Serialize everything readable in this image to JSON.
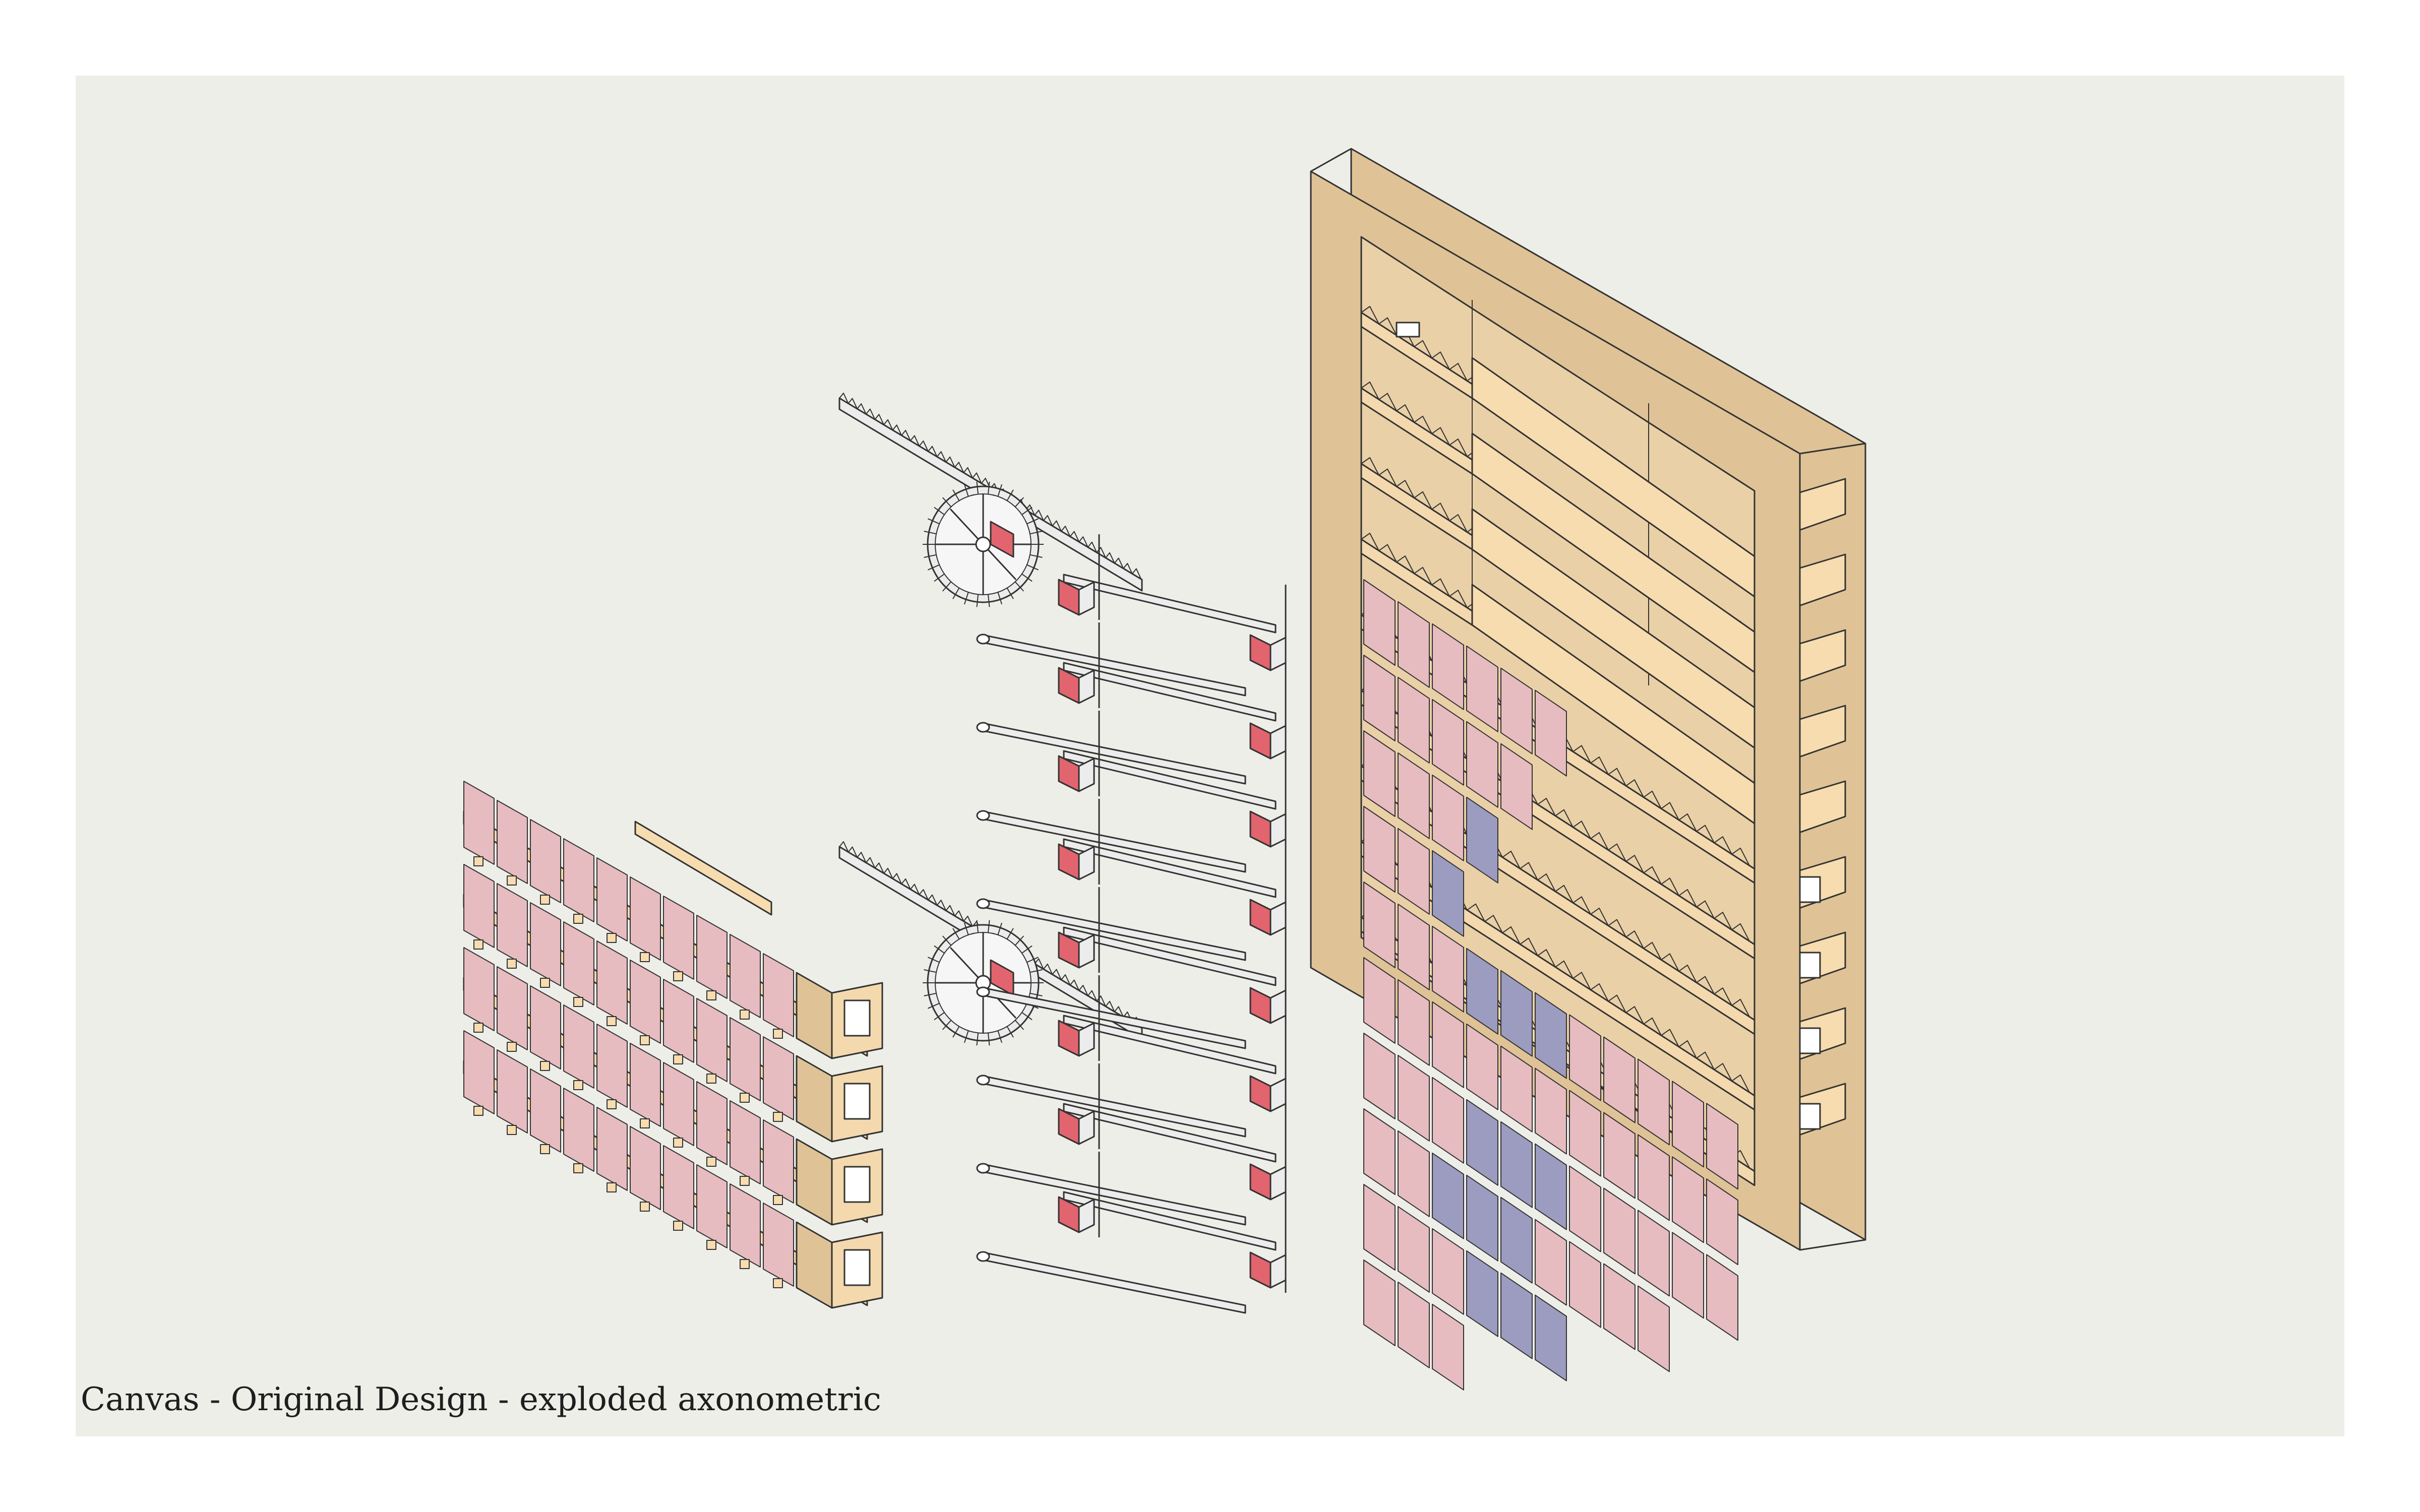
{
  "caption": "Canvas - Original Design - exploded axonometric",
  "components": {
    "tile_panel": {
      "rows": 4,
      "tiles_per_row": 10
    },
    "mechanism": {
      "racks": 2,
      "arm_rows": 8
    },
    "frame": {
      "shelves": 9,
      "tile_rows": 6,
      "tiles_per_row": 10
    }
  },
  "frame_blue_tiles": [
    [
      2,
      3
    ],
    [
      2,
      4
    ],
    [
      3,
      2
    ],
    [
      3,
      6
    ],
    [
      3,
      7
    ],
    [
      4,
      3
    ],
    [
      4,
      4
    ],
    [
      4,
      5
    ],
    [
      6,
      3
    ],
    [
      6,
      4
    ],
    [
      6,
      5
    ],
    [
      7,
      2
    ],
    [
      7,
      3
    ],
    [
      7,
      4
    ],
    [
      8,
      3
    ],
    [
      8,
      4
    ],
    [
      8,
      5
    ],
    [
      9,
      3
    ],
    [
      9,
      4
    ],
    [
      9,
      5
    ]
  ],
  "colors": {
    "paper": "#eeeee9",
    "wood": "#dfc396",
    "wood_light": "#f7dcaf",
    "tile_pink": "#e6bcc0",
    "tile_blue": "#9b9cbf",
    "accent_red": "#e2646e",
    "line": "#333333",
    "metal": "#ececec"
  }
}
